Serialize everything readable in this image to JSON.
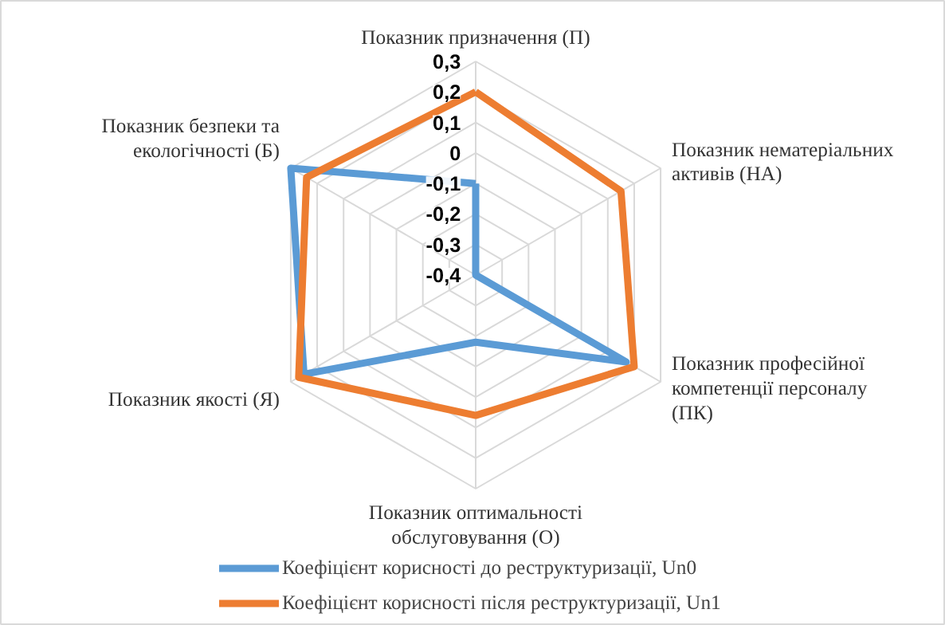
{
  "chart_data": {
    "type": "radar",
    "categories": [
      "Показник призначення (П)",
      "Показник нематеріальних\nактивів (НА)",
      "Показник професійної\nкомпетенції  персоналу\n(ПК)",
      "Показник оптимальності\nобслуговування (О)",
      "Показник якості (Я)",
      "Показник безпеки та\nекологічності (Б)"
    ],
    "ylim": [
      -0.4,
      0.3
    ],
    "yticks": [
      {
        "value": -0.4,
        "label": "-0,4"
      },
      {
        "value": -0.3,
        "label": "-0,3"
      },
      {
        "value": -0.2,
        "label": "-0,2"
      },
      {
        "value": -0.1,
        "label": "-0,1"
      },
      {
        "value": 0,
        "label": "0"
      },
      {
        "value": 0.1,
        "label": "0,1"
      },
      {
        "value": 0.2,
        "label": "0,2"
      },
      {
        "value": 0.3,
        "label": "0,3"
      }
    ],
    "grid": true,
    "legend": "bottom",
    "series": [
      {
        "name": "Коефіцієнт корисності до реструктуризації, Un0",
        "color": "#5b9bd5",
        "values": [
          -0.1,
          -0.4,
          0.17,
          -0.18,
          0.25,
          0.3
        ]
      },
      {
        "name": "Коефіцієнт корисності після реструктуризації, Un1",
        "color": "#ed7d31",
        "values": [
          0.2,
          0.15,
          0.2,
          0.06,
          0.27,
          0.24
        ]
      }
    ]
  }
}
